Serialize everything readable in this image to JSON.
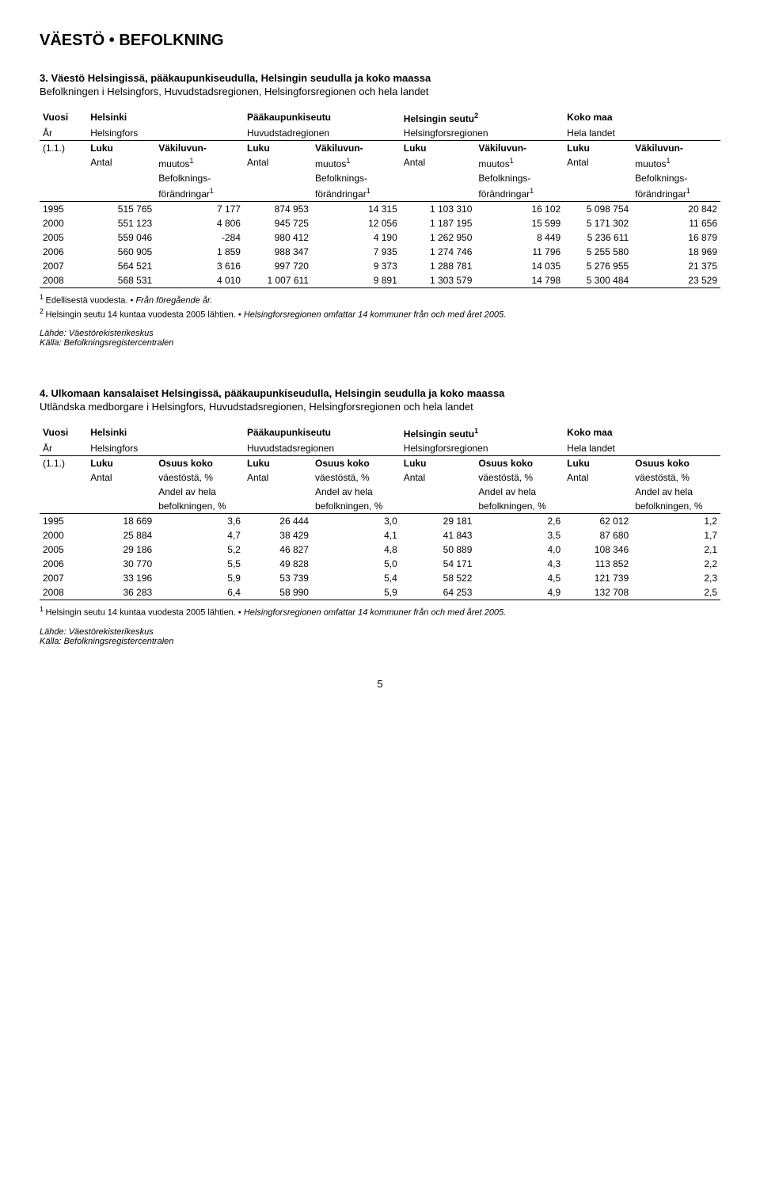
{
  "page_title": "VÄESTÖ • BEFOLKNING",
  "page_number": "5",
  "colors": {
    "text": "#000000",
    "background": "#ffffff",
    "rule": "#000000"
  },
  "typography": {
    "body_font": "Arial",
    "body_size_pt": 9,
    "title_size_pt": 16,
    "heading_size_pt": 10
  },
  "section3": {
    "number": "3.",
    "title_fi": "Väestö Helsingissä, pääkaupunkiseudulla, Helsingin seudulla ja koko maassa",
    "title_sv": "Befolkningen i Helsingfors, Huvudstadsregionen, Helsingforsregionen och hela landet",
    "header": {
      "row1": [
        "Vuosi",
        "Helsinki",
        "",
        "Pääkaupunkiseutu",
        "",
        "Helsingin seutu",
        "2",
        "Koko maa",
        ""
      ],
      "row2": [
        "År",
        "Helsingfors",
        "",
        "Huvudstadregionen",
        "",
        "Helsingforsregionen",
        "",
        "Hela landet",
        ""
      ],
      "row3_col1": "(1.1.)",
      "luku": "Luku",
      "vakiluvun": "Väkiluvun-",
      "antal": "Antal",
      "muutos": "muutos",
      "befolknings": "Befolknings-",
      "forandringar": "förändringar"
    },
    "rows": [
      {
        "year": "1995",
        "c": [
          "515 765",
          "7 177",
          "874 953",
          "14 315",
          "1 103 310",
          "16 102",
          "5 098 754",
          "20 842"
        ]
      },
      {
        "year": "2000",
        "c": [
          "551 123",
          "4 806",
          "945 725",
          "12 056",
          "1 187 195",
          "15 599",
          "5 171 302",
          "11 656"
        ]
      },
      {
        "year": "2005",
        "c": [
          "559 046",
          "-284",
          "980 412",
          "4 190",
          "1 262 950",
          "8 449",
          "5 236 611",
          "16 879"
        ]
      },
      {
        "year": "2006",
        "c": [
          "560 905",
          "1 859",
          "988 347",
          "7 935",
          "1 274 746",
          "11 796",
          "5 255 580",
          "18 969"
        ]
      },
      {
        "year": "2007",
        "c": [
          "564 521",
          "3 616",
          "997 720",
          "9 373",
          "1 288 781",
          "14 035",
          "5 276 955",
          "21 375"
        ]
      },
      {
        "year": "2008",
        "c": [
          "568 531",
          "4 010",
          "1 007 611",
          "9 891",
          "1 303 579",
          "14 798",
          "5 300 484",
          "23 529"
        ]
      }
    ],
    "footnote1_fi": "Edellisestä vuodesta.",
    "footnote1_sv": "Från föregående år.",
    "footnote2_fi": "Helsingin seutu 14 kuntaa vuodesta 2005 lähtien.",
    "footnote2_sv": "Helsingforsregionen omfattar 14 kommuner från och med året 2005.",
    "source_fi": "Lähde: Väestörekisterikeskus",
    "source_sv": "Källa: Befolkningsregistercentralen"
  },
  "section4": {
    "number": "4.",
    "title_fi": "Ulkomaan kansalaiset Helsingissä, pääkaupunkiseudulla, Helsingin seudulla ja koko maassa",
    "title_sv": "Utländska medborgare i Helsingfors, Huvudstadsregionen, Helsingforsregionen och hela landet",
    "header": {
      "row1": [
        "Vuosi",
        "Helsinki",
        "",
        "Pääkaupunkiseutu",
        "",
        "Helsingin seutu",
        "1",
        "Koko maa",
        ""
      ],
      "row2": [
        "År",
        "Helsingfors",
        "",
        "Huvudstadsregionen",
        "",
        "Helsingforsregionen",
        "",
        "Hela landet",
        ""
      ],
      "row3_col1": "(1.1.)",
      "luku": "Luku",
      "osuus": "Osuus koko",
      "antal": "Antal",
      "vaestosta": "väestöstä, %",
      "andel": "Andel av hela",
      "befolkningen": "befolkningen, %"
    },
    "rows": [
      {
        "year": "1995",
        "c": [
          "18 669",
          "3,6",
          "26 444",
          "3,0",
          "29 181",
          "2,6",
          "62 012",
          "1,2"
        ]
      },
      {
        "year": "2000",
        "c": [
          "25 884",
          "4,7",
          "38 429",
          "4,1",
          "41 843",
          "3,5",
          "87 680",
          "1,7"
        ]
      },
      {
        "year": "2005",
        "c": [
          "29 186",
          "5,2",
          "46 827",
          "4,8",
          "50 889",
          "4,0",
          "108 346",
          "2,1"
        ]
      },
      {
        "year": "2006",
        "c": [
          "30 770",
          "5,5",
          "49 828",
          "5,0",
          "54 171",
          "4,3",
          "113 852",
          "2,2"
        ]
      },
      {
        "year": "2007",
        "c": [
          "33 196",
          "5,9",
          "53 739",
          "5,4",
          "58 522",
          "4,5",
          "121 739",
          "2,3"
        ]
      },
      {
        "year": "2008",
        "c": [
          "36 283",
          "6,4",
          "58 990",
          "5,9",
          "64 253",
          "4,9",
          "132 708",
          "2,5"
        ]
      }
    ],
    "footnote1_fi": "Helsingin seutu 14 kuntaa vuodesta 2005 lähtien.",
    "footnote1_sv": "Helsingforsregionen omfattar 14 kommuner från och med året 2005.",
    "source_fi": "Lähde: Väestörekisterikeskus",
    "source_sv": "Källa: Befolkningsregistercentralen"
  }
}
